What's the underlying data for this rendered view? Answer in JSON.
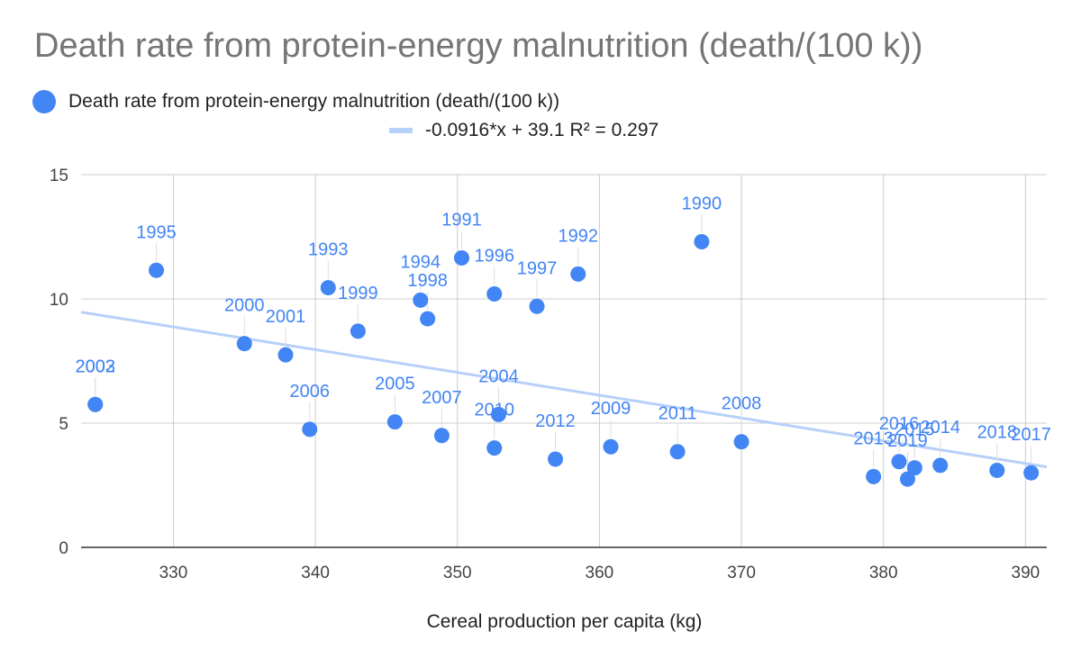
{
  "chart_data": {
    "type": "scatter",
    "title": "Death rate from protein-energy malnutrition (death/(100 k))",
    "xlabel": "Cereal production per capita (kg)",
    "ylabel": "",
    "xlim": [
      323.5,
      391.5
    ],
    "ylim": [
      0,
      15
    ],
    "xticks": [
      330,
      340,
      350,
      360,
      370,
      380,
      390
    ],
    "yticks": [
      0,
      5,
      10,
      15
    ],
    "grid": true,
    "legend_position": "top",
    "series": [
      {
        "name": "Death rate from protein-energy malnutrition (death/(100 k))",
        "color": "#4285f4",
        "points": [
          {
            "x": 367.2,
            "y": 12.3,
            "label": "1990"
          },
          {
            "x": 350.3,
            "y": 11.65,
            "label": "1991"
          },
          {
            "x": 358.5,
            "y": 11.0,
            "label": "1992"
          },
          {
            "x": 340.9,
            "y": 10.45,
            "label": "1993"
          },
          {
            "x": 347.4,
            "y": 9.95,
            "label": "1994"
          },
          {
            "x": 328.8,
            "y": 11.15,
            "label": "1995"
          },
          {
            "x": 352.6,
            "y": 10.2,
            "label": "1996"
          },
          {
            "x": 355.6,
            "y": 9.7,
            "label": "1997"
          },
          {
            "x": 347.9,
            "y": 9.2,
            "label": "1998"
          },
          {
            "x": 343.0,
            "y": 8.7,
            "label": "1999"
          },
          {
            "x": 335.0,
            "y": 8.2,
            "label": "2000"
          },
          {
            "x": 337.9,
            "y": 7.75,
            "label": "2001"
          },
          {
            "x": 324.5,
            "y": 5.75,
            "label": "2002"
          },
          {
            "x": 324.5,
            "y": 5.75,
            "label": "2003"
          },
          {
            "x": 352.9,
            "y": 5.35,
            "label": "2004"
          },
          {
            "x": 345.6,
            "y": 5.05,
            "label": "2005"
          },
          {
            "x": 339.6,
            "y": 4.75,
            "label": "2006"
          },
          {
            "x": 348.9,
            "y": 4.5,
            "label": "2007"
          },
          {
            "x": 370.0,
            "y": 4.25,
            "label": "2008"
          },
          {
            "x": 360.8,
            "y": 4.05,
            "label": "2009"
          },
          {
            "x": 352.6,
            "y": 4.0,
            "label": "2010"
          },
          {
            "x": 365.5,
            "y": 3.85,
            "label": "2011"
          },
          {
            "x": 356.9,
            "y": 3.55,
            "label": "2012"
          },
          {
            "x": 379.3,
            "y": 2.85,
            "label": "2013"
          },
          {
            "x": 384.0,
            "y": 3.3,
            "label": "2014"
          },
          {
            "x": 382.2,
            "y": 3.2,
            "label": "2015"
          },
          {
            "x": 381.1,
            "y": 3.45,
            "label": "2016"
          },
          {
            "x": 390.4,
            "y": 3.0,
            "label": "2017"
          },
          {
            "x": 388.0,
            "y": 3.1,
            "label": "2018"
          },
          {
            "x": 381.7,
            "y": 2.75,
            "label": "2019"
          }
        ]
      }
    ],
    "trendline": {
      "name": "-0.0916*x + 39.1 R² = 0.297",
      "slope": -0.0916,
      "intercept": 39.1,
      "r2": 0.297,
      "color": "#b7d0fa"
    }
  }
}
